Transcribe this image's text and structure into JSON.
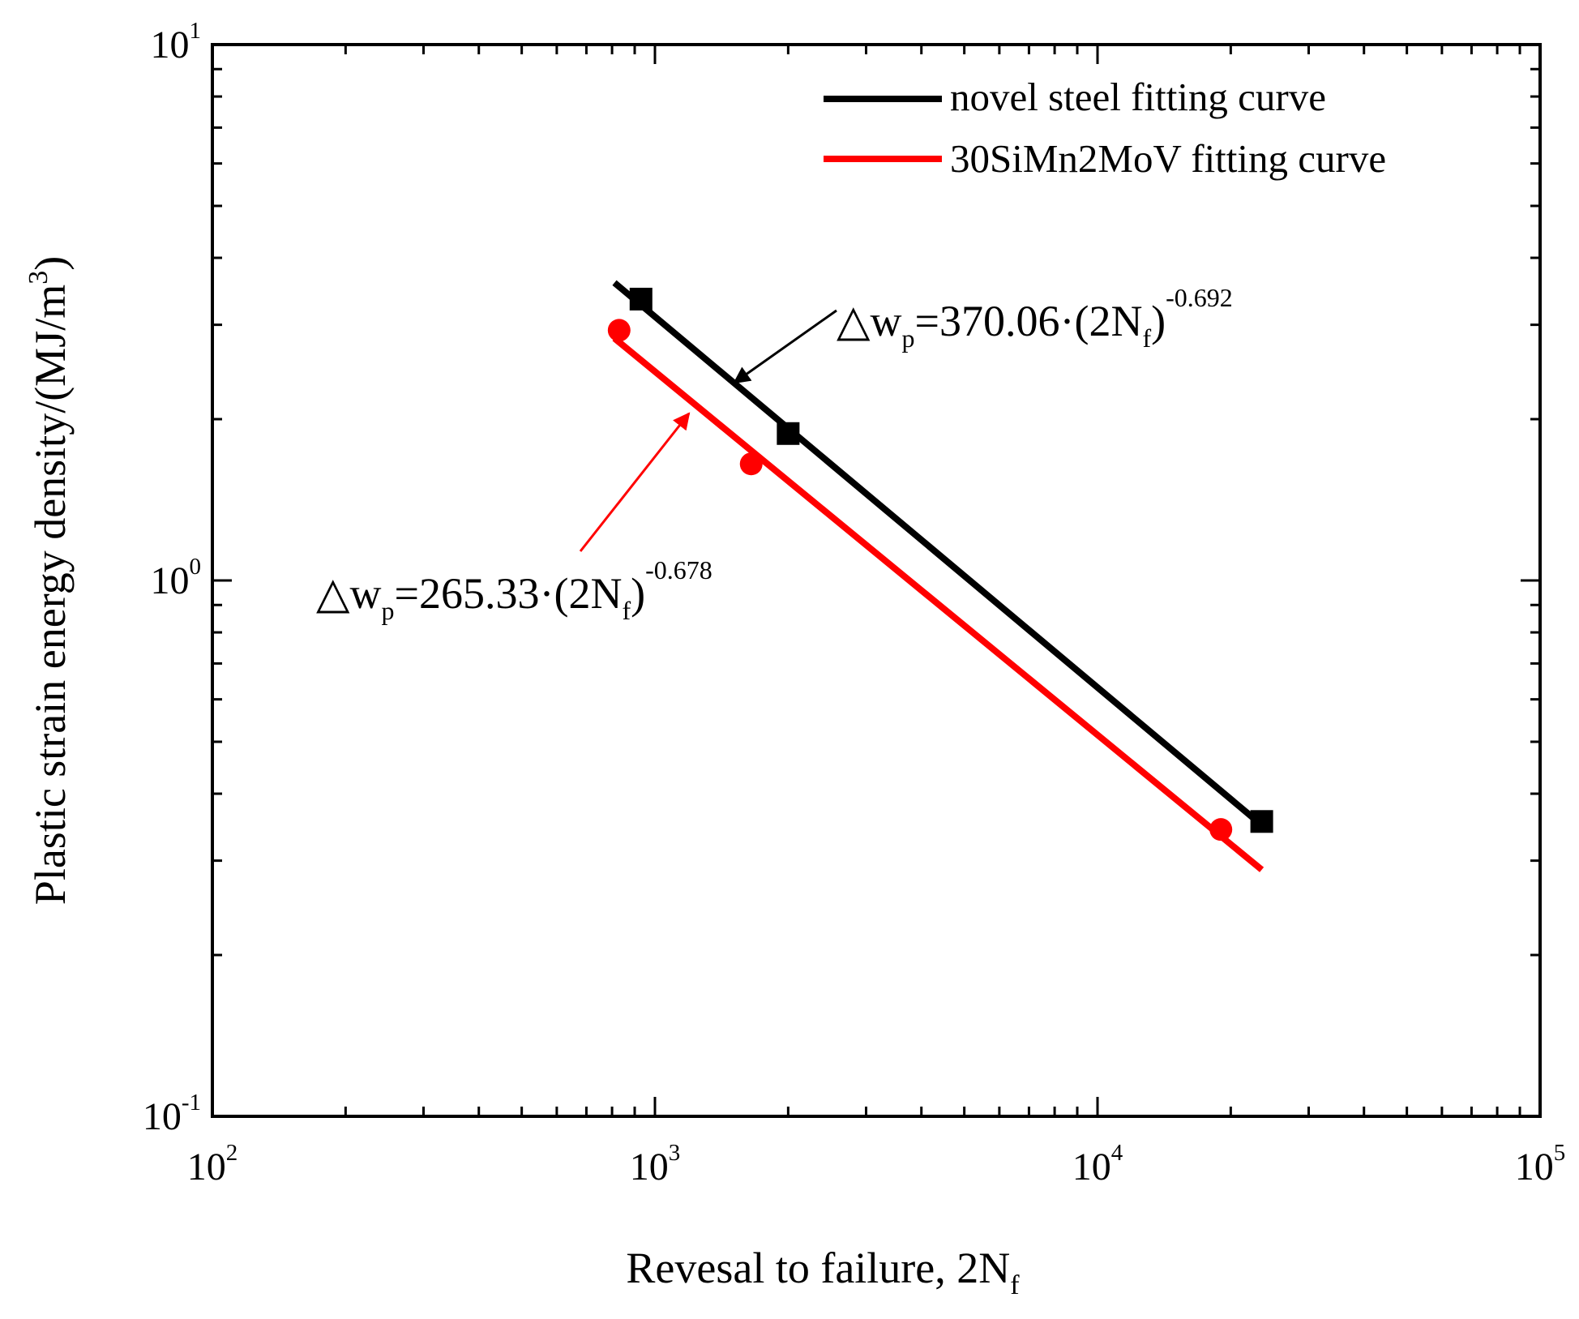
{
  "chart_data": {
    "type": "scatter",
    "title": "",
    "xlabel": {
      "main": "Revesal to failure, 2N",
      "sub": "f"
    },
    "ylabel": {
      "main": "Plastic strain energy density/(MJ/m",
      "sup": "3",
      "tail": ")"
    },
    "xscale": "log",
    "yscale": "log",
    "xlim": [
      100,
      100000
    ],
    "ylim": [
      0.1,
      10
    ],
    "x_ticks": [
      {
        "value": 100,
        "base": "10",
        "exp": "2"
      },
      {
        "value": 1000,
        "base": "10",
        "exp": "3"
      },
      {
        "value": 10000,
        "base": "10",
        "exp": "4"
      },
      {
        "value": 100000,
        "base": "10",
        "exp": "5"
      }
    ],
    "y_ticks": [
      {
        "value": 0.1,
        "base": "10",
        "exp": "-1"
      },
      {
        "value": 1,
        "base": "10",
        "exp": "0"
      },
      {
        "value": 10,
        "base": "10",
        "exp": "1"
      }
    ],
    "grid": false,
    "legend_position": "top-right",
    "series": [
      {
        "name": "novel steel fitting curve",
        "color": "#000000",
        "marker": "square",
        "points": [
          [
            930,
            3.35
          ],
          [
            2000,
            1.88
          ],
          [
            23500,
            0.355
          ]
        ],
        "fit": {
          "coef": 370.06,
          "exp": -0.692,
          "x_range": [
            810,
            23500
          ]
        }
      },
      {
        "name": "30SiMn2MoV fitting curve",
        "color": "#ff0000",
        "marker": "circle",
        "points": [
          [
            830,
            2.93
          ],
          [
            1650,
            1.65
          ],
          [
            19000,
            0.343
          ]
        ],
        "fit": {
          "coef": 265.33,
          "exp": -0.678,
          "x_range": [
            810,
            23500
          ]
        }
      }
    ],
    "annotations": [
      {
        "series": 0,
        "prefix": "△w",
        "sub1": "p",
        "mid": "=370.06·(2N",
        "sub2": "f",
        "close": ")",
        "sup": "-0.692"
      },
      {
        "series": 1,
        "prefix": "△w",
        "sub1": "p",
        "mid": "=265.33·(2N",
        "sub2": "f",
        "close": ")",
        "sup": "-0.678"
      }
    ]
  }
}
